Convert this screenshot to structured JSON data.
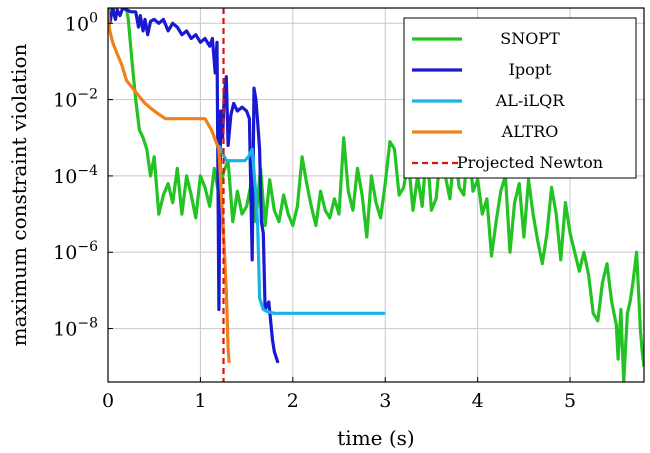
{
  "chart_data": {
    "type": "line",
    "xlabel": "time (s)",
    "ylabel": "maximum constraint violation",
    "xlim": [
      0,
      5.8
    ],
    "ylim_log10": [
      -9.4,
      0.4
    ],
    "y_scale": "log",
    "grid": true,
    "legend_position": "top-right",
    "x_ticks": [
      {
        "value": 0,
        "label": "0"
      },
      {
        "value": 1,
        "label": "1"
      },
      {
        "value": 2,
        "label": "2"
      },
      {
        "value": 3,
        "label": "3"
      },
      {
        "value": 4,
        "label": "4"
      },
      {
        "value": 5,
        "label": "5"
      }
    ],
    "y_ticks": [
      {
        "value": 0,
        "base": "10",
        "exp": "0"
      },
      {
        "value": -2,
        "base": "10",
        "exp": "−2"
      },
      {
        "value": -4,
        "base": "10",
        "exp": "−4"
      },
      {
        "value": -6,
        "base": "10",
        "exp": "−6"
      },
      {
        "value": -8,
        "base": "10",
        "exp": "−8"
      }
    ],
    "series": [
      {
        "name": "SNOPT",
        "color": "#22c322",
        "points": [
          [
            0,
            0.2
          ],
          [
            0.02,
            0.6
          ],
          [
            0.05,
            0.3
          ],
          [
            0.08,
            0.5
          ],
          [
            0.12,
            0.8
          ],
          [
            0.15,
            0.4
          ],
          [
            0.18,
            0.7
          ],
          [
            0.22,
            0.1
          ],
          [
            0.26,
            -1.0
          ],
          [
            0.3,
            -2.0
          ],
          [
            0.34,
            -2.8
          ],
          [
            0.38,
            -3.0
          ],
          [
            0.42,
            -3.3
          ],
          [
            0.46,
            -4.0
          ],
          [
            0.5,
            -3.5
          ],
          [
            0.55,
            -5.0
          ],
          [
            0.6,
            -4.5
          ],
          [
            0.65,
            -4.2
          ],
          [
            0.7,
            -4.7
          ],
          [
            0.75,
            -3.8
          ],
          [
            0.8,
            -5.0
          ],
          [
            0.85,
            -4.0
          ],
          [
            0.9,
            -4.5
          ],
          [
            0.95,
            -5.1
          ],
          [
            1.0,
            -4.0
          ],
          [
            1.05,
            -4.3
          ],
          [
            1.1,
            -4.8
          ],
          [
            1.15,
            -3.8
          ],
          [
            1.2,
            -4.5
          ],
          [
            1.25,
            -3.9
          ],
          [
            1.3,
            -3.6
          ],
          [
            1.35,
            -5.2
          ],
          [
            1.4,
            -4.4
          ],
          [
            1.45,
            -5.0
          ],
          [
            1.5,
            -4.8
          ],
          [
            1.55,
            -4.2
          ],
          [
            1.6,
            -5.2
          ],
          [
            1.65,
            -3.8
          ],
          [
            1.7,
            -5.3
          ],
          [
            1.75,
            -4.1
          ],
          [
            1.8,
            -4.9
          ],
          [
            1.85,
            -5.2
          ],
          [
            1.9,
            -4.5
          ],
          [
            1.95,
            -5.0
          ],
          [
            2.0,
            -5.3
          ],
          [
            2.05,
            -4.8
          ],
          [
            2.1,
            -3.5
          ],
          [
            2.15,
            -4.2
          ],
          [
            2.2,
            -4.8
          ],
          [
            2.25,
            -5.3
          ],
          [
            2.3,
            -4.4
          ],
          [
            2.35,
            -4.9
          ],
          [
            2.4,
            -5.1
          ],
          [
            2.45,
            -4.6
          ],
          [
            2.5,
            -5.0
          ],
          [
            2.55,
            -3.0
          ],
          [
            2.6,
            -4.4
          ],
          [
            2.65,
            -4.9
          ],
          [
            2.7,
            -3.8
          ],
          [
            2.75,
            -4.5
          ],
          [
            2.8,
            -5.6
          ],
          [
            2.85,
            -4.0
          ],
          [
            2.9,
            -4.7
          ],
          [
            2.95,
            -5.1
          ],
          [
            3.0,
            -4.2
          ],
          [
            3.05,
            -3.1
          ],
          [
            3.1,
            -3.3
          ],
          [
            3.15,
            -4.5
          ],
          [
            3.2,
            -4.3
          ],
          [
            3.25,
            -3.6
          ],
          [
            3.3,
            -4.9
          ],
          [
            3.35,
            -4.0
          ],
          [
            3.4,
            -4.8
          ],
          [
            3.45,
            -3.2
          ],
          [
            3.5,
            -4.9
          ],
          [
            3.55,
            -4.6
          ],
          [
            3.6,
            -3.4
          ],
          [
            3.65,
            -4.0
          ],
          [
            3.7,
            -4.6
          ],
          [
            3.75,
            -3.3
          ],
          [
            3.8,
            -4.3
          ],
          [
            3.85,
            -4.5
          ],
          [
            3.9,
            -3.1
          ],
          [
            3.95,
            -4.4
          ],
          [
            4.0,
            -4.1
          ],
          [
            4.05,
            -5.0
          ],
          [
            4.1,
            -4.6
          ],
          [
            4.15,
            -6.1
          ],
          [
            4.2,
            -5.2
          ],
          [
            4.25,
            -4.4
          ],
          [
            4.3,
            -4.0
          ],
          [
            4.35,
            -6.0
          ],
          [
            4.4,
            -4.7
          ],
          [
            4.45,
            -4.2
          ],
          [
            4.5,
            -5.6
          ],
          [
            4.55,
            -4.1
          ],
          [
            4.6,
            -5.0
          ],
          [
            4.65,
            -5.7
          ],
          [
            4.7,
            -6.3
          ],
          [
            4.75,
            -5.5
          ],
          [
            4.8,
            -4.3
          ],
          [
            4.85,
            -5.0
          ],
          [
            4.9,
            -6.2
          ],
          [
            4.95,
            -4.7
          ],
          [
            5.0,
            -5.5
          ],
          [
            5.05,
            -6.0
          ],
          [
            5.1,
            -6.5
          ],
          [
            5.15,
            -6.0
          ],
          [
            5.2,
            -6.6
          ],
          [
            5.25,
            -7.6
          ],
          [
            5.3,
            -7.8
          ],
          [
            5.35,
            -6.8
          ],
          [
            5.4,
            -6.3
          ],
          [
            5.45,
            -7.3
          ],
          [
            5.5,
            -7.9
          ],
          [
            5.52,
            -8.8
          ],
          [
            5.55,
            -7.5
          ],
          [
            5.58,
            -9.4
          ],
          [
            5.62,
            -7.6
          ],
          [
            5.65,
            -7.3
          ],
          [
            5.68,
            -6.8
          ],
          [
            5.72,
            -6.0
          ],
          [
            5.74,
            -7.0
          ],
          [
            5.76,
            -8.0
          ],
          [
            5.78,
            -8.6
          ],
          [
            5.8,
            -9.0
          ]
        ]
      },
      {
        "name": "Ipopt",
        "color": "#1919d2",
        "points": [
          [
            0,
            0.3
          ],
          [
            0.02,
            0.0
          ],
          [
            0.05,
            0.4
          ],
          [
            0.08,
            0.1
          ],
          [
            0.1,
            0.35
          ],
          [
            0.13,
            0.2
          ],
          [
            0.16,
            0.4
          ],
          [
            0.2,
            0.35
          ],
          [
            0.25,
            0.3
          ],
          [
            0.3,
            0.3
          ],
          [
            0.33,
            -0.1
          ],
          [
            0.35,
            0.2
          ],
          [
            0.38,
            -0.2
          ],
          [
            0.4,
            0.1
          ],
          [
            0.43,
            -0.3
          ],
          [
            0.46,
            0.05
          ],
          [
            0.5,
            0.1
          ],
          [
            0.55,
            0.0
          ],
          [
            0.6,
            0.1
          ],
          [
            0.65,
            -0.2
          ],
          [
            0.7,
            0.0
          ],
          [
            0.75,
            -0.1
          ],
          [
            0.8,
            -0.3
          ],
          [
            0.85,
            -0.2
          ],
          [
            0.9,
            -0.4
          ],
          [
            0.95,
            -0.3
          ],
          [
            1.0,
            -0.5
          ],
          [
            1.05,
            -0.4
          ],
          [
            1.1,
            -0.6
          ],
          [
            1.13,
            -0.4
          ],
          [
            1.16,
            -1.3
          ],
          [
            1.18,
            -0.5
          ],
          [
            1.2,
            -7.5
          ],
          [
            1.22,
            -2.3
          ],
          [
            1.24,
            -3.0
          ],
          [
            1.26,
            -1.8
          ],
          [
            1.28,
            -1.4
          ],
          [
            1.3,
            -3.2
          ],
          [
            1.33,
            -2.4
          ],
          [
            1.36,
            -2.1
          ],
          [
            1.4,
            -2.3
          ],
          [
            1.45,
            -2.2
          ],
          [
            1.5,
            -2.3
          ],
          [
            1.53,
            -2.5
          ],
          [
            1.56,
            -6.2
          ],
          [
            1.58,
            -1.7
          ],
          [
            1.6,
            -2.0
          ],
          [
            1.62,
            -2.6
          ],
          [
            1.64,
            -3.3
          ],
          [
            1.66,
            -5.2
          ],
          [
            1.68,
            -5.5
          ],
          [
            1.7,
            -7.5
          ],
          [
            1.74,
            -7.3
          ],
          [
            1.78,
            -8.3
          ],
          [
            1.8,
            -8.6
          ],
          [
            1.84,
            -8.9
          ]
        ]
      },
      {
        "name": "AL-iLQR",
        "color": "#19b4e6",
        "points": [
          [
            1.2,
            -3.2
          ],
          [
            1.28,
            -3.6
          ],
          [
            1.35,
            -3.6
          ],
          [
            1.42,
            -3.6
          ],
          [
            1.48,
            -3.6
          ],
          [
            1.52,
            -3.5
          ],
          [
            1.56,
            -3.3
          ],
          [
            1.6,
            -4.5
          ],
          [
            1.62,
            -5.3
          ],
          [
            1.64,
            -7.2
          ],
          [
            1.68,
            -7.5
          ],
          [
            1.72,
            -7.55
          ],
          [
            1.8,
            -7.6
          ],
          [
            2.0,
            -7.6
          ],
          [
            2.5,
            -7.6
          ],
          [
            3.0,
            -7.6
          ]
        ]
      },
      {
        "name": "ALTRO",
        "color": "#f08019",
        "points": [
          [
            0,
            0.3
          ],
          [
            0.02,
            -0.2
          ],
          [
            0.05,
            -0.5
          ],
          [
            0.1,
            -0.8
          ],
          [
            0.15,
            -1.1
          ],
          [
            0.2,
            -1.5
          ],
          [
            0.3,
            -1.8
          ],
          [
            0.4,
            -2.1
          ],
          [
            0.5,
            -2.3
          ],
          [
            0.62,
            -2.5
          ],
          [
            1.05,
            -2.5
          ],
          [
            1.12,
            -2.8
          ],
          [
            1.2,
            -3.3
          ],
          [
            1.25,
            -5.5
          ],
          [
            1.28,
            -7.0
          ],
          [
            1.3,
            -8.5
          ],
          [
            1.31,
            -8.9
          ]
        ]
      },
      {
        "name": "Projected Newton",
        "color": "#e01010",
        "dashed": true,
        "vertical_x": 1.25
      }
    ]
  }
}
